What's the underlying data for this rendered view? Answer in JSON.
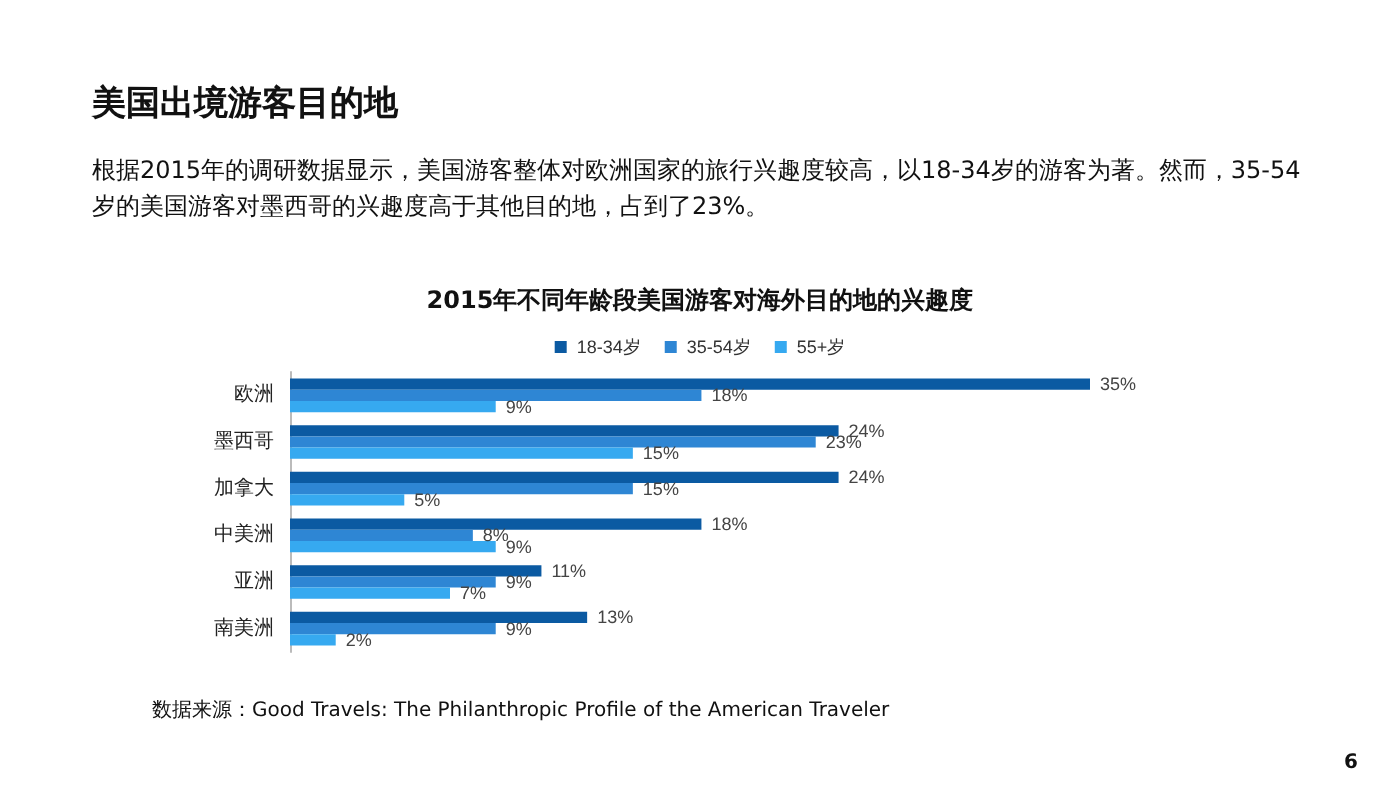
{
  "chart_data": {
    "type": "bar",
    "orientation": "horizontal",
    "title": "美国出境游客目的地",
    "subtitle": "根据2015年的调研数据显示，美国游客整体对欧洲国家的旅行兴趣度较高，以18-34岁的游客为著。然而，35-54岁的美国游客对墨西哥的兴趣度高于其他目的地，占到了23%。",
    "annotations": [
      "2015年不同年龄段美国游客对海外目的地的兴趣度",
      "数据来源：Good Travels: The Philanthropic Profile of the American Traveler",
      "6"
    ],
    "categories": [
      "欧洲",
      "墨西哥",
      "加拿大",
      "中美洲",
      "亚洲",
      "南美洲"
    ],
    "series": [
      {
        "name": "18-34岁",
        "color": "#0b5aa2",
        "values": [
          35,
          24,
          24,
          18,
          11,
          13
        ],
        "value_labels": [
          "35%",
          "24%",
          "24%",
          "18%",
          "11%",
          "13%"
        ]
      },
      {
        "name": "35-54岁",
        "color": "#2e86d4",
        "values": [
          18,
          23,
          15,
          8,
          9,
          9
        ],
        "value_labels": [
          "18%",
          "23%",
          "15%",
          "8%",
          "9%",
          "9%"
        ]
      },
      {
        "name": "55+岁",
        "color": "#36a9f0",
        "values": [
          9,
          15,
          5,
          9,
          7,
          2
        ],
        "value_labels": [
          "9%",
          "15%",
          "5%",
          "9%",
          "7%",
          "2%"
        ]
      }
    ],
    "legend": "top",
    "grid": false
  }
}
